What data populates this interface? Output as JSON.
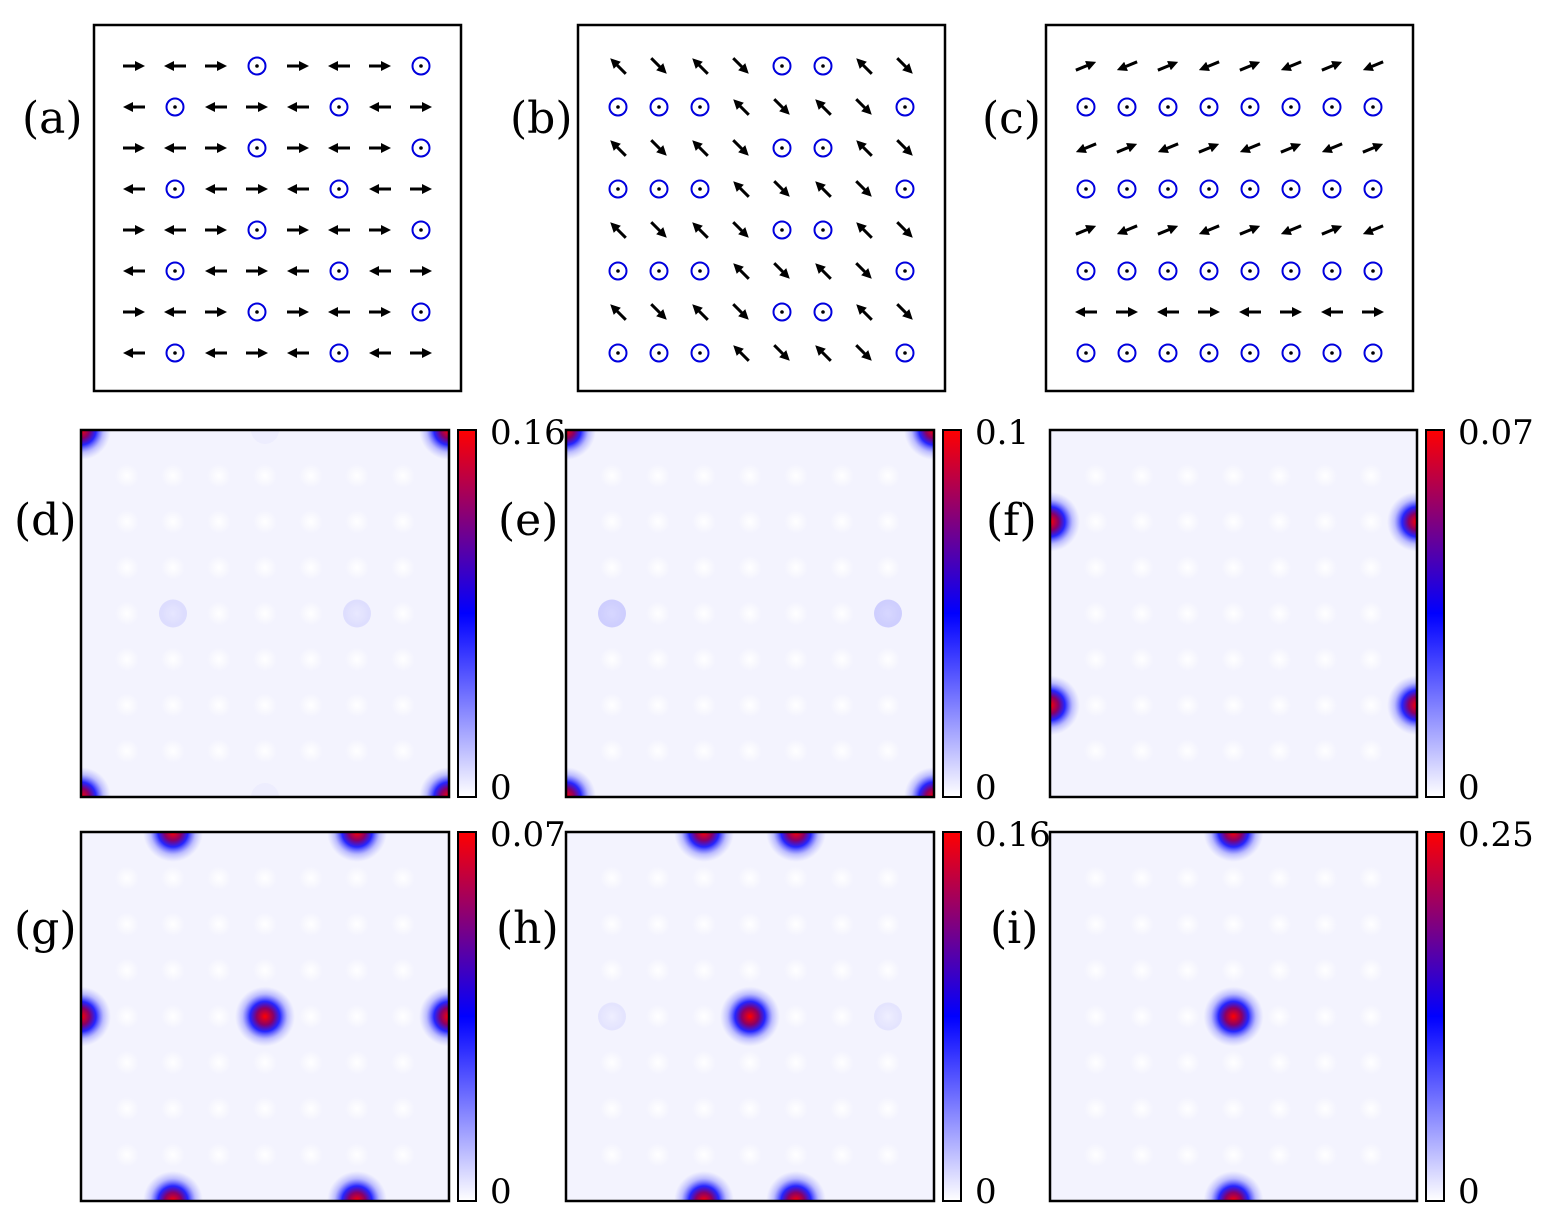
{
  "figure": {
    "colors": {
      "arrow": "#000000",
      "site_marker": "#0000dd",
      "frame": "#000000"
    },
    "colormap": [
      "#ffffff",
      "#0000ff",
      "#ff0000"
    ]
  },
  "chart_data": [
    {
      "type": "spin-lattice",
      "panel": "(a)",
      "rows": 8,
      "cols": 8,
      "grid": [
        [
          "E",
          "W",
          "E",
          "Z",
          "E",
          "W",
          "E",
          "Z"
        ],
        [
          "W",
          "Z",
          "W",
          "E",
          "W",
          "Z",
          "W",
          "E"
        ],
        [
          "E",
          "W",
          "E",
          "Z",
          "E",
          "W",
          "E",
          "Z"
        ],
        [
          "W",
          "Z",
          "W",
          "E",
          "W",
          "Z",
          "W",
          "E"
        ],
        [
          "E",
          "W",
          "E",
          "Z",
          "E",
          "W",
          "E",
          "Z"
        ],
        [
          "W",
          "Z",
          "W",
          "E",
          "W",
          "Z",
          "W",
          "E"
        ],
        [
          "E",
          "W",
          "E",
          "Z",
          "E",
          "W",
          "E",
          "Z"
        ],
        [
          "W",
          "Z",
          "W",
          "E",
          "W",
          "Z",
          "W",
          "E"
        ]
      ]
    },
    {
      "type": "spin-lattice",
      "panel": "(b)",
      "rows": 8,
      "cols": 8,
      "grid": [
        [
          "NW",
          "SE",
          "NW",
          "SE",
          "Z",
          "Z",
          "NW",
          "SE"
        ],
        [
          "Z",
          "Z",
          "Z",
          "NW",
          "SE",
          "NW",
          "SE",
          "Z"
        ],
        [
          "NW",
          "SE",
          "NW",
          "SE",
          "Z",
          "Z",
          "NW",
          "SE"
        ],
        [
          "Z",
          "Z",
          "Z",
          "NW",
          "SE",
          "NW",
          "SE",
          "Z"
        ],
        [
          "NW",
          "SE",
          "NW",
          "SE",
          "Z",
          "Z",
          "NW",
          "SE"
        ],
        [
          "Z",
          "Z",
          "Z",
          "NW",
          "SE",
          "NW",
          "SE",
          "Z"
        ],
        [
          "NW",
          "SE",
          "NW",
          "SE",
          "Z",
          "Z",
          "NW",
          "SE"
        ],
        [
          "Z",
          "Z",
          "Z",
          "NW",
          "SE",
          "NW",
          "SE",
          "Z"
        ]
      ]
    },
    {
      "type": "spin-lattice",
      "panel": "(c)",
      "rows": 8,
      "cols": 8,
      "grid": [
        [
          "ENE",
          "WSW",
          "ENE",
          "WSW",
          "ENE",
          "WSW",
          "ENE",
          "WSW"
        ],
        [
          "Z",
          "Z",
          "Z",
          "Z",
          "Z",
          "Z",
          "Z",
          "Z"
        ],
        [
          "WSW",
          "ENE",
          "WSW",
          "ENE",
          "WSW",
          "ENE",
          "WSW",
          "ENE"
        ],
        [
          "Z",
          "Z",
          "Z",
          "Z",
          "Z",
          "Z",
          "Z",
          "Z"
        ],
        [
          "ENE",
          "WSW",
          "ENE",
          "WSW",
          "ENE",
          "WSW",
          "ENE",
          "WSW"
        ],
        [
          "Z",
          "Z",
          "Z",
          "Z",
          "Z",
          "Z",
          "Z",
          "Z"
        ],
        [
          "W",
          "E",
          "W",
          "E",
          "W",
          "E",
          "W",
          "E"
        ],
        [
          "Z",
          "Z",
          "Z",
          "Z",
          "Z",
          "Z",
          "Z",
          "Z"
        ]
      ]
    },
    {
      "type": "heatmap",
      "panel": "(d)",
      "vmin": 0,
      "vmax": 0.16,
      "cb_max_label": "0.16",
      "cb_min_label": "0",
      "peaks": [
        {
          "x": 0,
          "y": 0,
          "a": 1.0
        },
        {
          "x": 1,
          "y": 0,
          "a": 1.0
        },
        {
          "x": 0,
          "y": 1,
          "a": 1.0
        },
        {
          "x": 1,
          "y": 1,
          "a": 1.0
        },
        {
          "x": 0.25,
          "y": 0.5,
          "a": 0.18
        },
        {
          "x": 0.75,
          "y": 0.5,
          "a": 0.16
        },
        {
          "x": 0.5,
          "y": 0,
          "a": 0.05
        },
        {
          "x": 0.5,
          "y": 1,
          "a": 0.05
        }
      ]
    },
    {
      "type": "heatmap",
      "panel": "(e)",
      "vmin": 0,
      "vmax": 0.1,
      "cb_max_label": "0.1",
      "cb_min_label": "0",
      "peaks": [
        {
          "x": 0,
          "y": 0,
          "a": 1.0
        },
        {
          "x": 1,
          "y": 0,
          "a": 1.0
        },
        {
          "x": 0,
          "y": 1,
          "a": 1.0
        },
        {
          "x": 1,
          "y": 1,
          "a": 1.0
        },
        {
          "x": 0.125,
          "y": 0.5,
          "a": 0.3
        },
        {
          "x": 0.875,
          "y": 0.5,
          "a": 0.3
        }
      ]
    },
    {
      "type": "heatmap",
      "panel": "(f)",
      "vmin": 0,
      "vmax": 0.07,
      "cb_max_label": "0.07",
      "cb_min_label": "0",
      "peaks": [
        {
          "x": 0,
          "y": 0.25,
          "a": 1.0
        },
        {
          "x": 1,
          "y": 0.25,
          "a": 1.0
        },
        {
          "x": 0,
          "y": 0.75,
          "a": 1.0
        },
        {
          "x": 1,
          "y": 0.75,
          "a": 1.0
        }
      ]
    },
    {
      "type": "heatmap",
      "panel": "(g)",
      "vmin": 0,
      "vmax": 0.07,
      "cb_max_label": "0.07",
      "cb_min_label": "0",
      "peaks": [
        {
          "x": 0.25,
          "y": 0,
          "a": 1.0
        },
        {
          "x": 0.75,
          "y": 0,
          "a": 1.0
        },
        {
          "x": 0,
          "y": 0.5,
          "a": 1.0
        },
        {
          "x": 0.5,
          "y": 0.5,
          "a": 1.0
        },
        {
          "x": 1,
          "y": 0.5,
          "a": 1.0
        },
        {
          "x": 0.25,
          "y": 1,
          "a": 1.0
        },
        {
          "x": 0.75,
          "y": 1,
          "a": 1.0
        }
      ]
    },
    {
      "type": "heatmap",
      "panel": "(h)",
      "vmin": 0,
      "vmax": 0.16,
      "cb_max_label": "0.16",
      "cb_min_label": "0",
      "peaks": [
        {
          "x": 0.375,
          "y": 0,
          "a": 0.7
        },
        {
          "x": 0.625,
          "y": 0,
          "a": 0.7
        },
        {
          "x": 0.5,
          "y": 0.5,
          "a": 1.0
        },
        {
          "x": 0.125,
          "y": 0.5,
          "a": 0.12
        },
        {
          "x": 0.875,
          "y": 0.5,
          "a": 0.12
        },
        {
          "x": 0.375,
          "y": 1,
          "a": 0.7
        },
        {
          "x": 0.625,
          "y": 1,
          "a": 0.7
        }
      ]
    },
    {
      "type": "heatmap",
      "panel": "(i)",
      "vmin": 0,
      "vmax": 0.25,
      "cb_max_label": "0.25",
      "cb_min_label": "0",
      "peaks": [
        {
          "x": 0.5,
          "y": 0,
          "a": 1.0
        },
        {
          "x": 0.5,
          "y": 0.5,
          "a": 1.0
        },
        {
          "x": 0.5,
          "y": 1,
          "a": 1.0
        }
      ]
    }
  ]
}
